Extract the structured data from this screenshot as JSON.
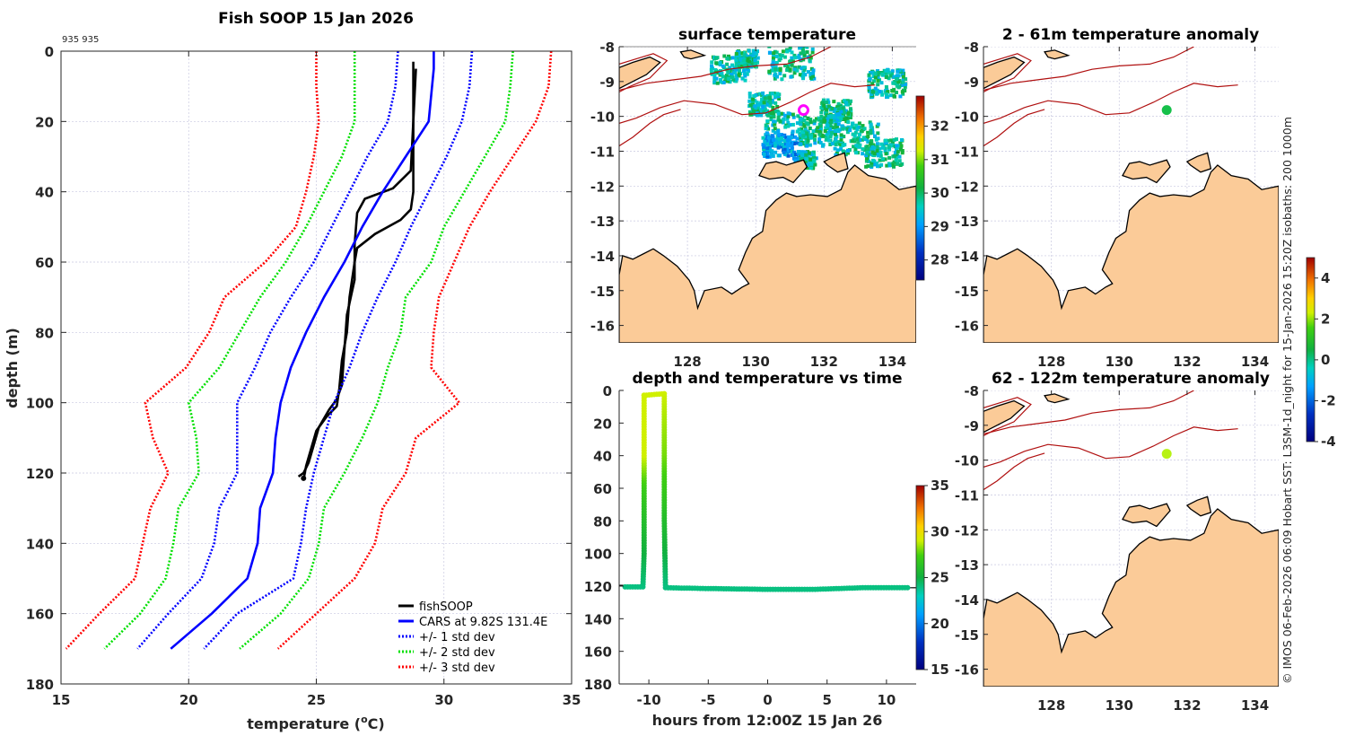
{
  "chart_data": [
    {
      "id": "profile",
      "type": "line",
      "title": "Fish SOOP 15 Jan 2026",
      "annotation": "935 935",
      "xlabel": "temperature (°C)",
      "ylabel": "depth (m)",
      "xlim": [
        15,
        35
      ],
      "ylim": [
        0,
        180
      ],
      "y_reversed": true,
      "xticks": [
        15,
        20,
        25,
        30,
        35
      ],
      "yticks": [
        0,
        20,
        40,
        60,
        80,
        100,
        120,
        140,
        160,
        180
      ],
      "grid": true,
      "legend_position": "bottom-right",
      "legend": [
        "fishSOOP",
        "CARS at 9.82S 131.4E",
        "+/- 1 std dev",
        "+/- 2 std dev",
        "+/- 3 std dev"
      ],
      "series": [
        {
          "name": "fishSOOP (down)",
          "color": "#000000",
          "style": "solid",
          "points": [
            [
              28.8,
              3
            ],
            [
              28.8,
              20
            ],
            [
              28.7,
              34
            ],
            [
              28.0,
              39
            ],
            [
              26.9,
              42
            ],
            [
              26.6,
              46
            ],
            [
              26.5,
              55
            ],
            [
              26.5,
              65
            ],
            [
              26.2,
              75
            ],
            [
              26.1,
              85
            ],
            [
              26.0,
              95
            ],
            [
              25.8,
              99
            ],
            [
              25.5,
              102
            ],
            [
              25.1,
              107
            ],
            [
              24.9,
              112
            ],
            [
              24.7,
              117
            ],
            [
              24.5,
              120
            ],
            [
              24.3,
              121
            ]
          ]
        },
        {
          "name": "fishSOOP (up)",
          "color": "#000000",
          "style": "solid",
          "points": [
            [
              24.5,
              122
            ],
            [
              24.6,
              118
            ],
            [
              24.8,
              113
            ],
            [
              25.0,
              108
            ],
            [
              25.4,
              104
            ],
            [
              25.8,
              101
            ],
            [
              25.9,
              96
            ],
            [
              26.0,
              88
            ],
            [
              26.2,
              80
            ],
            [
              26.3,
              70
            ],
            [
              26.5,
              60
            ],
            [
              26.6,
              56
            ],
            [
              27.3,
              52
            ],
            [
              28.3,
              48
            ],
            [
              28.7,
              45
            ],
            [
              28.8,
              40
            ],
            [
              28.8,
              30
            ],
            [
              28.8,
              20
            ],
            [
              28.9,
              5
            ]
          ]
        },
        {
          "name": "CARS at 9.82S 131.4E",
          "color": "#0000ff",
          "style": "solid",
          "points": [
            [
              29.6,
              0
            ],
            [
              29.6,
              5
            ],
            [
              29.4,
              20
            ],
            [
              28.5,
              30
            ],
            [
              27.6,
              40
            ],
            [
              26.8,
              50
            ],
            [
              26.1,
              60
            ],
            [
              25.3,
              70
            ],
            [
              24.6,
              80
            ],
            [
              24.0,
              90
            ],
            [
              23.6,
              100
            ],
            [
              23.4,
              110
            ],
            [
              23.3,
              120
            ],
            [
              22.8,
              130
            ],
            [
              22.7,
              140
            ],
            [
              22.3,
              150
            ],
            [
              20.9,
              160
            ],
            [
              19.3,
              170
            ]
          ]
        },
        {
          "name": "CARS -1 std dev",
          "color": "#0000ff",
          "style": "dotted",
          "points": [
            [
              28.2,
              0
            ],
            [
              28.1,
              10
            ],
            [
              27.8,
              20
            ],
            [
              27.0,
              30
            ],
            [
              26.3,
              40
            ],
            [
              25.6,
              50
            ],
            [
              24.9,
              60
            ],
            [
              24.0,
              70
            ],
            [
              23.2,
              80
            ],
            [
              22.6,
              90
            ],
            [
              21.9,
              100
            ],
            [
              21.9,
              110
            ],
            [
              21.9,
              120
            ],
            [
              21.2,
              130
            ],
            [
              21.0,
              140
            ],
            [
              20.5,
              150
            ],
            [
              19.2,
              160
            ],
            [
              18.0,
              170
            ]
          ]
        },
        {
          "name": "CARS +1 std dev",
          "color": "#0000ff",
          "style": "dotted",
          "points": [
            [
              31.1,
              0
            ],
            [
              31.0,
              10
            ],
            [
              30.7,
              20
            ],
            [
              30.1,
              30
            ],
            [
              29.4,
              40
            ],
            [
              28.7,
              50
            ],
            [
              28.1,
              60
            ],
            [
              27.4,
              70
            ],
            [
              26.8,
              80
            ],
            [
              26.3,
              90
            ],
            [
              25.7,
              100
            ],
            [
              25.3,
              110
            ],
            [
              24.9,
              120
            ],
            [
              24.6,
              130
            ],
            [
              24.4,
              140
            ],
            [
              24.1,
              150
            ],
            [
              21.9,
              160
            ],
            [
              20.6,
              170
            ]
          ]
        },
        {
          "name": "CARS -2 std dev",
          "color": "#00e000",
          "style": "dotted",
          "points": [
            [
              26.5,
              0
            ],
            [
              26.5,
              10
            ],
            [
              26.5,
              20
            ],
            [
              26.0,
              30
            ],
            [
              25.3,
              40
            ],
            [
              24.6,
              50
            ],
            [
              23.8,
              60
            ],
            [
              22.8,
              70
            ],
            [
              22.0,
              80
            ],
            [
              21.2,
              90
            ],
            [
              20.0,
              100
            ],
            [
              20.3,
              110
            ],
            [
              20.4,
              120
            ],
            [
              19.6,
              130
            ],
            [
              19.4,
              140
            ],
            [
              19.1,
              150
            ],
            [
              18.1,
              160
            ],
            [
              16.7,
              170
            ]
          ]
        },
        {
          "name": "CARS +2 std dev",
          "color": "#00e000",
          "style": "dotted",
          "points": [
            [
              32.7,
              0
            ],
            [
              32.6,
              10
            ],
            [
              32.4,
              20
            ],
            [
              31.6,
              30
            ],
            [
              30.8,
              40
            ],
            [
              30.0,
              50
            ],
            [
              29.5,
              60
            ],
            [
              28.5,
              70
            ],
            [
              28.3,
              80
            ],
            [
              27.8,
              90
            ],
            [
              27.4,
              100
            ],
            [
              26.8,
              110
            ],
            [
              26.1,
              120
            ],
            [
              25.3,
              130
            ],
            [
              25.1,
              140
            ],
            [
              24.7,
              150
            ],
            [
              23.6,
              160
            ],
            [
              22.0,
              170
            ]
          ]
        },
        {
          "name": "CARS -3 std dev",
          "color": "#ff0000",
          "style": "dotted",
          "points": [
            [
              25.0,
              0
            ],
            [
              25.0,
              10
            ],
            [
              25.1,
              20
            ],
            [
              24.9,
              30
            ],
            [
              24.6,
              40
            ],
            [
              24.2,
              50
            ],
            [
              23.0,
              60
            ],
            [
              21.4,
              70
            ],
            [
              20.8,
              80
            ],
            [
              19.9,
              90
            ],
            [
              18.3,
              100
            ],
            [
              18.6,
              110
            ],
            [
              19.2,
              120
            ],
            [
              18.5,
              130
            ],
            [
              18.2,
              140
            ],
            [
              17.9,
              150
            ],
            [
              16.5,
              160
            ],
            [
              15.2,
              170
            ]
          ]
        },
        {
          "name": "CARS +3 std dev",
          "color": "#ff0000",
          "style": "dotted",
          "points": [
            [
              34.2,
              0
            ],
            [
              34.1,
              10
            ],
            [
              33.6,
              20
            ],
            [
              32.7,
              30
            ],
            [
              31.8,
              40
            ],
            [
              31.0,
              50
            ],
            [
              30.4,
              60
            ],
            [
              29.8,
              70
            ],
            [
              29.6,
              80
            ],
            [
              29.5,
              90
            ],
            [
              30.6,
              100
            ],
            [
              28.9,
              110
            ],
            [
              28.5,
              120
            ],
            [
              27.6,
              130
            ],
            [
              27.3,
              140
            ],
            [
              26.5,
              150
            ],
            [
              25.0,
              160
            ],
            [
              23.5,
              170
            ]
          ]
        }
      ]
    },
    {
      "id": "surface-map",
      "type": "heatmap",
      "title": "surface temperature",
      "xlim": [
        126.0,
        134.7
      ],
      "ylim": [
        -16.5,
        -8
      ],
      "xticks": [
        128,
        130,
        132,
        134
      ],
      "yticks": [
        -8,
        -9,
        -10,
        -11,
        -12,
        -13,
        -14,
        -15,
        -16
      ],
      "colorbar": {
        "min": 27.4,
        "max": 32.9,
        "ticks": [
          28,
          29,
          30,
          31,
          32
        ],
        "colormap": "jet-like"
      },
      "marker": {
        "lon": 131.4,
        "lat": -9.82,
        "shape": "circle",
        "color": "#ff00ff"
      }
    },
    {
      "id": "depth-time",
      "type": "scatter",
      "title": "depth and temperature vs time",
      "xlabel": "hours from 12:00Z 15 Jan 26",
      "xlim": [
        -12.5,
        12.5
      ],
      "ylim": [
        0,
        180
      ],
      "y_reversed": true,
      "xticks": [
        -10,
        -5,
        0,
        5,
        10
      ],
      "yticks": [
        0,
        20,
        40,
        60,
        80,
        100,
        120,
        140,
        160,
        180
      ],
      "colorbar": {
        "min": 15,
        "max": 35,
        "ticks": [
          15,
          20,
          25,
          30,
          35
        ]
      },
      "reference_depth": 121,
      "track": [
        [
          -12.0,
          120.5,
          24.0
        ],
        [
          -10.5,
          120.5,
          24.0
        ],
        [
          -10.4,
          100,
          25.0
        ],
        [
          -10.4,
          60,
          27.0
        ],
        [
          -10.4,
          40,
          29.0
        ],
        [
          -10.4,
          3,
          29.0
        ],
        [
          -10.4,
          3,
          29.0
        ],
        [
          -8.7,
          2,
          29.0
        ],
        [
          -8.7,
          40,
          28.0
        ],
        [
          -8.7,
          80,
          26.0
        ],
        [
          -8.6,
          121,
          24.0
        ],
        [
          -5,
          121.5,
          24.0
        ],
        [
          0,
          122,
          24.0
        ],
        [
          4,
          122,
          24.0
        ],
        [
          8,
          121,
          24.0
        ],
        [
          12,
          121,
          24.0
        ]
      ]
    },
    {
      "id": "anomaly-2-61",
      "type": "scatter",
      "title": "2 - 61m temperature anomaly",
      "xlim": [
        126.0,
        134.7
      ],
      "ylim": [
        -16.5,
        -8
      ],
      "xticks": [
        128,
        130,
        132,
        134
      ],
      "yticks": [
        -8,
        -9,
        -10,
        -11,
        -12,
        -13,
        -14,
        -15,
        -16
      ],
      "points": [
        {
          "lon": 131.4,
          "lat": -9.82,
          "anomaly": -0.3,
          "color": "#16c04a"
        }
      ]
    },
    {
      "id": "anomaly-62-122",
      "type": "scatter",
      "title": "62 - 122m temperature anomaly",
      "xlim": [
        126.0,
        134.7
      ],
      "ylim": [
        -16.5,
        -8
      ],
      "xticks": [
        128,
        130,
        132,
        134
      ],
      "yticks": [
        -8,
        -9,
        -10,
        -11,
        -12,
        -13,
        -14,
        -15,
        -16
      ],
      "points": [
        {
          "lon": 131.4,
          "lat": -9.82,
          "anomaly": 1.4,
          "color": "#b7f214"
        }
      ],
      "colorbar": {
        "min": -4,
        "max": 5,
        "ticks": [
          -4,
          -2,
          0,
          2,
          4
        ]
      }
    }
  ],
  "credit": "© IMOS 06-Feb-2026 06:09 Hobart SST: L3SM-1d_night for 15-Jan-2026 15:20Z isobaths: 200  1000m",
  "colors": {
    "land": "#fbcb98",
    "isobath": "#b01010",
    "grid": "#c8c8e0",
    "axis": "#262626"
  }
}
